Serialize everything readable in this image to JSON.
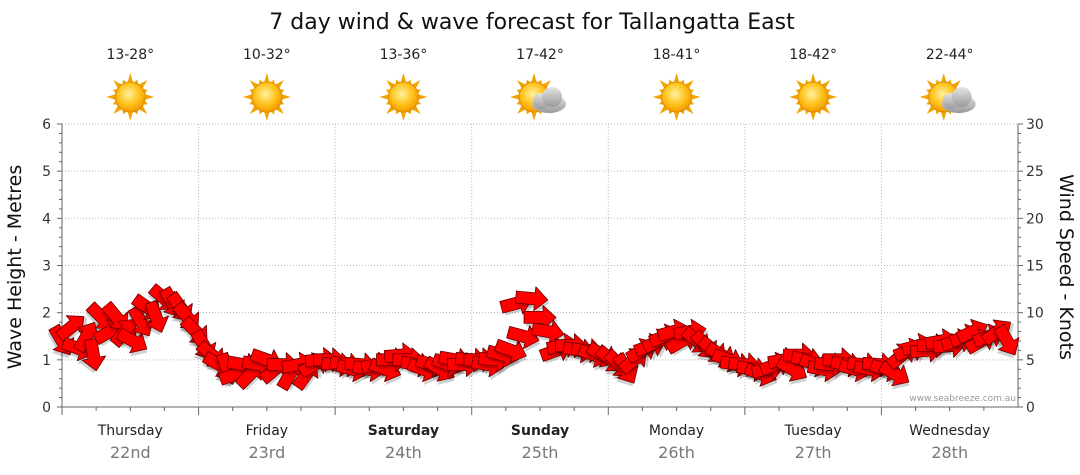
{
  "title": "7 day wind & wave forecast for Tallangatta East",
  "watermark": "www.seabreeze.com.au",
  "left_axis_label": "Wave Height - Metres",
  "right_axis_label": "Wind Speed - Knots",
  "left_ticks": [
    "0",
    "1",
    "2",
    "3",
    "4",
    "5",
    "6"
  ],
  "right_ticks": [
    "0",
    "5",
    "10",
    "15",
    "20",
    "25",
    "30"
  ],
  "colors": {
    "arrow": "#ff0000",
    "arrow_outline": "#660000",
    "sun": "#ffb700",
    "cloud": "#bdbdbd"
  },
  "days": [
    {
      "name": "Thursday",
      "date": "22nd",
      "bold": false,
      "temp": "13-28°",
      "icon": "sun-icon"
    },
    {
      "name": "Friday",
      "date": "23rd",
      "bold": false,
      "temp": "10-32°",
      "icon": "sun-icon"
    },
    {
      "name": "Saturday",
      "date": "24th",
      "bold": true,
      "temp": "13-36°",
      "icon": "sun-icon"
    },
    {
      "name": "Sunday",
      "date": "25th",
      "bold": true,
      "temp": "17-42°",
      "icon": "partly-cloudy-icon"
    },
    {
      "name": "Monday",
      "date": "26th",
      "bold": false,
      "temp": "18-41°",
      "icon": "sun-icon"
    },
    {
      "name": "Tuesday",
      "date": "27th",
      "bold": false,
      "temp": "18-42°",
      "icon": "sun-icon"
    },
    {
      "name": "Wednesday",
      "date": "28th",
      "bold": false,
      "temp": "22-44°",
      "icon": "partly-cloudy-icon"
    }
  ],
  "chart_data": {
    "type": "scatter",
    "title": "7 day wind & wave forecast for Tallangatta East",
    "xlabel": "",
    "ylabel": "Wave Height - Metres",
    "y2label": "Wind Speed - Knots",
    "ylim": [
      0,
      6
    ],
    "y2lim": [
      0,
      30
    ],
    "x_unit": "day index (0 = start of Thursday 22nd)",
    "grid": true,
    "series": [
      {
        "name": "Wind",
        "marker": "arrow",
        "points": [
          {
            "x": 0.0,
            "y": 7.0,
            "dir": 60
          },
          {
            "x": 0.07,
            "y": 8.5,
            "dir": -40
          },
          {
            "x": 0.12,
            "y": 6.2,
            "dir": 20
          },
          {
            "x": 0.18,
            "y": 7.5,
            "dir": -60
          },
          {
            "x": 0.23,
            "y": 5.5,
            "dir": 80
          },
          {
            "x": 0.29,
            "y": 9.5,
            "dir": 45
          },
          {
            "x": 0.35,
            "y": 8.0,
            "dir": -30
          },
          {
            "x": 0.4,
            "y": 9.5,
            "dir": 50
          },
          {
            "x": 0.46,
            "y": 8.0,
            "dir": -50
          },
          {
            "x": 0.52,
            "y": 7.0,
            "dir": 30
          },
          {
            "x": 0.58,
            "y": 9.0,
            "dir": 60
          },
          {
            "x": 0.63,
            "y": 10.5,
            "dir": 35
          },
          {
            "x": 0.69,
            "y": 9.5,
            "dir": 70
          },
          {
            "x": 0.75,
            "y": 11.5,
            "dir": 40
          },
          {
            "x": 0.81,
            "y": 11.0,
            "dir": 60
          },
          {
            "x": 0.87,
            "y": 10.5,
            "dir": 55
          },
          {
            "x": 0.92,
            "y": 9.5,
            "dir": 50
          },
          {
            "x": 0.98,
            "y": 8.0,
            "dir": 45
          },
          {
            "x": 1.04,
            "y": 6.5,
            "dir": 60
          },
          {
            "x": 1.1,
            "y": 5.5,
            "dir": 40
          },
          {
            "x": 1.15,
            "y": 4.5,
            "dir": 30
          },
          {
            "x": 1.21,
            "y": 4.0,
            "dir": 70
          },
          {
            "x": 1.27,
            "y": 3.5,
            "dir": -20
          },
          {
            "x": 1.33,
            "y": 4.5,
            "dir": 10
          },
          {
            "x": 1.38,
            "y": 3.5,
            "dir": -45
          },
          {
            "x": 1.44,
            "y": 4.5,
            "dir": 10
          },
          {
            "x": 1.5,
            "y": 5.0,
            "dir": 20
          },
          {
            "x": 1.56,
            "y": 4.0,
            "dir": -40
          },
          {
            "x": 1.62,
            "y": 4.5,
            "dir": 0
          },
          {
            "x": 1.67,
            "y": 3.5,
            "dir": -60
          },
          {
            "x": 1.73,
            "y": 4.5,
            "dir": -10
          },
          {
            "x": 1.79,
            "y": 3.5,
            "dir": -55
          },
          {
            "x": 1.85,
            "y": 4.5,
            "dir": -30
          },
          {
            "x": 1.9,
            "y": 5.0,
            "dir": -5
          },
          {
            "x": 1.96,
            "y": 5.0,
            "dir": 0
          },
          {
            "x": 2.02,
            "y": 4.5,
            "dir": 5
          },
          {
            "x": 2.08,
            "y": 4.5,
            "dir": 10
          },
          {
            "x": 2.13,
            "y": 4.0,
            "dir": 15
          },
          {
            "x": 2.19,
            "y": 4.5,
            "dir": 5
          },
          {
            "x": 2.25,
            "y": 4.0,
            "dir": 10
          },
          {
            "x": 2.31,
            "y": 4.5,
            "dir": -10
          },
          {
            "x": 2.37,
            "y": 4.0,
            "dir": 20
          },
          {
            "x": 2.42,
            "y": 5.0,
            "dir": 0
          },
          {
            "x": 2.48,
            "y": 5.5,
            "dir": -5
          },
          {
            "x": 2.54,
            "y": 5.0,
            "dir": 0
          },
          {
            "x": 2.6,
            "y": 4.5,
            "dir": 10
          },
          {
            "x": 2.65,
            "y": 4.0,
            "dir": 20
          },
          {
            "x": 2.71,
            "y": 4.5,
            "dir": 15
          },
          {
            "x": 2.77,
            "y": 4.0,
            "dir": 30
          },
          {
            "x": 2.83,
            "y": 4.5,
            "dir": 20
          },
          {
            "x": 2.88,
            "y": 5.0,
            "dir": 10
          },
          {
            "x": 2.94,
            "y": 4.5,
            "dir": 0
          },
          {
            "x": 3.0,
            "y": 5.0,
            "dir": 5
          },
          {
            "x": 3.06,
            "y": 5.0,
            "dir": 0
          },
          {
            "x": 3.12,
            "y": 4.5,
            "dir": 10
          },
          {
            "x": 3.17,
            "y": 5.0,
            "dir": 5
          },
          {
            "x": 3.23,
            "y": 5.5,
            "dir": 15
          },
          {
            "x": 3.29,
            "y": 6.0,
            "dir": 20
          },
          {
            "x": 3.33,
            "y": 11.0,
            "dir": -15
          },
          {
            "x": 3.38,
            "y": 7.5,
            "dir": 15
          },
          {
            "x": 3.44,
            "y": 11.5,
            "dir": 5
          },
          {
            "x": 3.5,
            "y": 9.5,
            "dir": 0
          },
          {
            "x": 3.56,
            "y": 8.0,
            "dir": 10
          },
          {
            "x": 3.62,
            "y": 6.0,
            "dir": -20
          },
          {
            "x": 3.67,
            "y": 6.5,
            "dir": -10
          },
          {
            "x": 3.73,
            "y": 6.5,
            "dir": 0
          },
          {
            "x": 3.79,
            "y": 6.0,
            "dir": 10
          },
          {
            "x": 3.85,
            "y": 6.0,
            "dir": 5
          },
          {
            "x": 3.9,
            "y": 5.5,
            "dir": 20
          },
          {
            "x": 3.96,
            "y": 5.5,
            "dir": 30
          },
          {
            "x": 4.02,
            "y": 5.0,
            "dir": 40
          },
          {
            "x": 4.08,
            "y": 4.5,
            "dir": 45
          },
          {
            "x": 4.13,
            "y": 4.0,
            "dir": 60
          },
          {
            "x": 4.19,
            "y": 5.0,
            "dir": -40
          },
          {
            "x": 4.25,
            "y": 6.0,
            "dir": -30
          },
          {
            "x": 4.31,
            "y": 6.5,
            "dir": -20
          },
          {
            "x": 4.37,
            "y": 7.0,
            "dir": -25
          },
          {
            "x": 4.42,
            "y": 7.5,
            "dir": -20
          },
          {
            "x": 4.48,
            "y": 8.0,
            "dir": -15
          },
          {
            "x": 4.54,
            "y": 7.0,
            "dir": -30
          },
          {
            "x": 4.6,
            "y": 8.0,
            "dir": -10
          },
          {
            "x": 4.65,
            "y": 7.0,
            "dir": 40
          },
          {
            "x": 4.71,
            "y": 6.5,
            "dir": 50
          },
          {
            "x": 4.77,
            "y": 6.0,
            "dir": 40
          },
          {
            "x": 4.83,
            "y": 5.5,
            "dir": 30
          },
          {
            "x": 4.88,
            "y": 5.0,
            "dir": 20
          },
          {
            "x": 4.94,
            "y": 4.5,
            "dir": 10
          },
          {
            "x": 5.0,
            "y": 4.5,
            "dir": 5
          },
          {
            "x": 5.06,
            "y": 4.0,
            "dir": 10
          },
          {
            "x": 5.12,
            "y": 3.5,
            "dir": 20
          },
          {
            "x": 5.17,
            "y": 4.0,
            "dir": -10
          },
          {
            "x": 5.23,
            "y": 4.5,
            "dir": -20
          },
          {
            "x": 5.29,
            "y": 5.0,
            "dir": -10
          },
          {
            "x": 5.35,
            "y": 4.0,
            "dir": 30
          },
          {
            "x": 5.4,
            "y": 5.5,
            "dir": 0
          },
          {
            "x": 5.46,
            "y": 5.0,
            "dir": 10
          },
          {
            "x": 5.52,
            "y": 4.5,
            "dir": 20
          },
          {
            "x": 5.58,
            "y": 4.0,
            "dir": 10
          },
          {
            "x": 5.63,
            "y": 4.5,
            "dir": 5
          },
          {
            "x": 5.69,
            "y": 5.0,
            "dir": 0
          },
          {
            "x": 5.75,
            "y": 4.5,
            "dir": 10
          },
          {
            "x": 5.81,
            "y": 4.0,
            "dir": 15
          },
          {
            "x": 5.87,
            "y": 4.5,
            "dir": 5
          },
          {
            "x": 5.92,
            "y": 4.0,
            "dir": 10
          },
          {
            "x": 5.98,
            "y": 4.5,
            "dir": 5
          },
          {
            "x": 6.04,
            "y": 4.0,
            "dir": 15
          },
          {
            "x": 6.1,
            "y": 3.5,
            "dir": 30
          },
          {
            "x": 6.15,
            "y": 5.5,
            "dir": -40
          },
          {
            "x": 6.21,
            "y": 6.0,
            "dir": -20
          },
          {
            "x": 6.27,
            "y": 6.5,
            "dir": -15
          },
          {
            "x": 6.33,
            "y": 6.0,
            "dir": -5
          },
          {
            "x": 6.38,
            "y": 6.5,
            "dir": 0
          },
          {
            "x": 6.44,
            "y": 7.0,
            "dir": -10
          },
          {
            "x": 6.5,
            "y": 6.5,
            "dir": -5
          },
          {
            "x": 6.56,
            "y": 7.0,
            "dir": -15
          },
          {
            "x": 6.62,
            "y": 7.5,
            "dir": -20
          },
          {
            "x": 6.67,
            "y": 8.0,
            "dir": -25
          },
          {
            "x": 6.73,
            "y": 7.0,
            "dir": -30
          },
          {
            "x": 6.79,
            "y": 7.5,
            "dir": -20
          },
          {
            "x": 6.85,
            "y": 8.0,
            "dir": -35
          },
          {
            "x": 6.92,
            "y": 7.0,
            "dir": 60
          }
        ]
      }
    ]
  }
}
